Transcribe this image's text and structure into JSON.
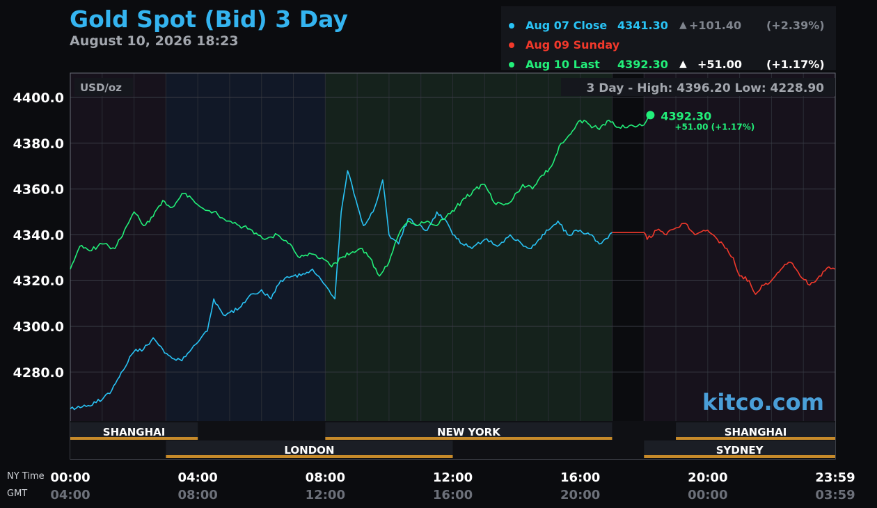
{
  "header": {
    "title": "Gold Spot (Bid) 3 Day",
    "subtitle": "August 10, 2026 18:23"
  },
  "legend": [
    {
      "label": "Aug 07 Close",
      "value": "4341.30",
      "arrow": "▲",
      "change": "+101.40",
      "pct": "(+2.39%)",
      "color": "#29c3f5",
      "dim": true
    },
    {
      "label": "Aug 09 Sunday",
      "value": "",
      "arrow": "",
      "change": "",
      "pct": "",
      "color": "#f2392b",
      "dim": false
    },
    {
      "label": "Aug 10 Last",
      "value": "4392.30",
      "arrow": "▲",
      "change": "+51.00",
      "pct": "(+1.17%)",
      "color": "#22f07a",
      "dim": false
    }
  ],
  "chart_data": {
    "type": "line",
    "unit_label": "USD/oz",
    "range_label": "3 Day - High: 4396.20  Low: 4228.90",
    "ylim": [
      4255,
      4405
    ],
    "y_ticks": [
      "4400.0",
      "4380.0",
      "4360.0",
      "4340.0",
      "4320.0",
      "4300.0",
      "4280.0"
    ],
    "y_tick_values": [
      4400,
      4380,
      4360,
      4340,
      4320,
      4300,
      4280
    ],
    "xlim": [
      0,
      24
    ],
    "x_ticks": [
      {
        "ny": "00:00",
        "gmt": "04:00",
        "hour": 0
      },
      {
        "ny": "04:00",
        "gmt": "08:00",
        "hour": 4
      },
      {
        "ny": "08:00",
        "gmt": "12:00",
        "hour": 8
      },
      {
        "ny": "12:00",
        "gmt": "16:00",
        "hour": 12
      },
      {
        "ny": "16:00",
        "gmt": "20:00",
        "hour": 16
      },
      {
        "ny": "20:00",
        "gmt": "00:00",
        "hour": 20
      },
      {
        "ny": "23:59",
        "gmt": "03:59",
        "hour": 24
      }
    ],
    "x_axis_row_labels": [
      "NY Time",
      "GMT"
    ],
    "sessions": [
      {
        "name": "SHANGHAI",
        "row": 1,
        "segments": [
          [
            0,
            4
          ],
          [
            19,
            24
          ]
        ]
      },
      {
        "name": "NEW YORK",
        "row": 1,
        "segments": [
          [
            8,
            17
          ]
        ]
      },
      {
        "name": "LONDON",
        "row": 2,
        "segments": [
          [
            3,
            12
          ]
        ]
      },
      {
        "name": "SYDNEY",
        "row": 2,
        "segments": [
          [
            18,
            24
          ]
        ]
      }
    ],
    "series": [
      {
        "name": "Aug 07 Close",
        "color": "#29c3f5",
        "x": [
          0,
          0.5,
          1,
          1.3,
          1.6,
          2,
          2.3,
          2.6,
          2.9,
          3.2,
          3.5,
          3.8,
          4,
          4.3,
          4.5,
          4.8,
          5,
          5.3,
          5.6,
          6,
          6.3,
          6.6,
          7,
          7.3,
          7.6,
          8,
          8.3,
          8.5,
          8.7,
          8.9,
          9.2,
          9.5,
          9.8,
          10,
          10.3,
          10.6,
          10.9,
          11.2,
          11.5,
          11.8,
          12,
          12.3,
          12.6,
          13,
          13.4,
          13.8,
          14.1,
          14.4,
          14.7,
          15,
          15.3,
          15.6,
          16,
          16.3,
          16.6,
          17
        ],
        "y": [
          4264,
          4265,
          4268,
          4272,
          4280,
          4289,
          4290,
          4295,
          4290,
          4286,
          4285,
          4290,
          4293,
          4298,
          4312,
          4305,
          4306,
          4308,
          4313,
          4316,
          4312,
          4320,
          4322,
          4323,
          4325,
          4318,
          4312,
          4350,
          4368,
          4358,
          4344,
          4350,
          4364,
          4340,
          4336,
          4347,
          4344,
          4342,
          4350,
          4346,
          4340,
          4336,
          4334,
          4338,
          4335,
          4340,
          4337,
          4334,
          4338,
          4342,
          4346,
          4340,
          4342,
          4340,
          4336,
          4341
        ]
      },
      {
        "name": "Aug 09 Sunday",
        "color": "#f2392b",
        "x": [
          17,
          18,
          18.1,
          18.4,
          18.7,
          19,
          19.3,
          19.6,
          20,
          20.3,
          20.6,
          20.8,
          21,
          21.3,
          21.5,
          21.7,
          22,
          22.3,
          22.6,
          22.9,
          23.2,
          23.5,
          23.8,
          24
        ],
        "y": [
          4341,
          4341,
          4338,
          4342,
          4340,
          4343,
          4345,
          4340,
          4342,
          4338,
          4334,
          4330,
          4322,
          4320,
          4314,
          4318,
          4320,
          4325,
          4328,
          4322,
          4318,
          4322,
          4326,
          4325
        ]
      },
      {
        "name": "Aug 10 Last",
        "color": "#22f07a",
        "x": [
          0,
          0.3,
          0.6,
          1,
          1.4,
          1.7,
          2,
          2.3,
          2.6,
          2.9,
          3.2,
          3.5,
          3.8,
          4.1,
          4.5,
          4.9,
          5.3,
          5.7,
          6.1,
          6.5,
          6.9,
          7.2,
          7.5,
          7.9,
          8.2,
          8.5,
          8.8,
          9.1,
          9.4,
          9.7,
          10,
          10.3,
          10.6,
          10.9,
          11.2,
          11.5,
          11.8,
          12.1,
          12.4,
          12.7,
          13,
          13.3,
          13.6,
          13.9,
          14.2,
          14.5,
          14.8,
          15.1,
          15.4,
          15.7,
          16,
          16.3,
          16.6,
          16.9,
          17.2,
          17.6,
          18,
          18.2
        ],
        "y": [
          4325,
          4335,
          4333,
          4336,
          4334,
          4342,
          4350,
          4344,
          4348,
          4355,
          4352,
          4358,
          4356,
          4352,
          4350,
          4346,
          4344,
          4342,
          4338,
          4340,
          4336,
          4330,
          4332,
          4330,
          4326,
          4330,
          4332,
          4334,
          4330,
          4322,
          4328,
          4340,
          4346,
          4344,
          4346,
          4344,
          4348,
          4352,
          4356,
          4360,
          4362,
          4354,
          4353,
          4356,
          4362,
          4360,
          4366,
          4370,
          4380,
          4384,
          4390,
          4388,
          4386,
          4390,
          4387,
          4388,
          4388,
          4392.3
        ]
      }
    ],
    "last_point": {
      "x": 18.2,
      "y": 4392.3,
      "value": "4392.30",
      "change": "+51.00 (+1.17%)"
    },
    "bands": [
      {
        "x0": 0,
        "x1": 3,
        "color": "#17121c"
      },
      {
        "x0": 3,
        "x1": 8,
        "color": "#111827"
      },
      {
        "x0": 8,
        "x1": 17,
        "color": "#15221c"
      },
      {
        "x0": 18,
        "x1": 24,
        "color": "#17121c"
      }
    ],
    "grid": true,
    "watermark": "kitco.com"
  }
}
